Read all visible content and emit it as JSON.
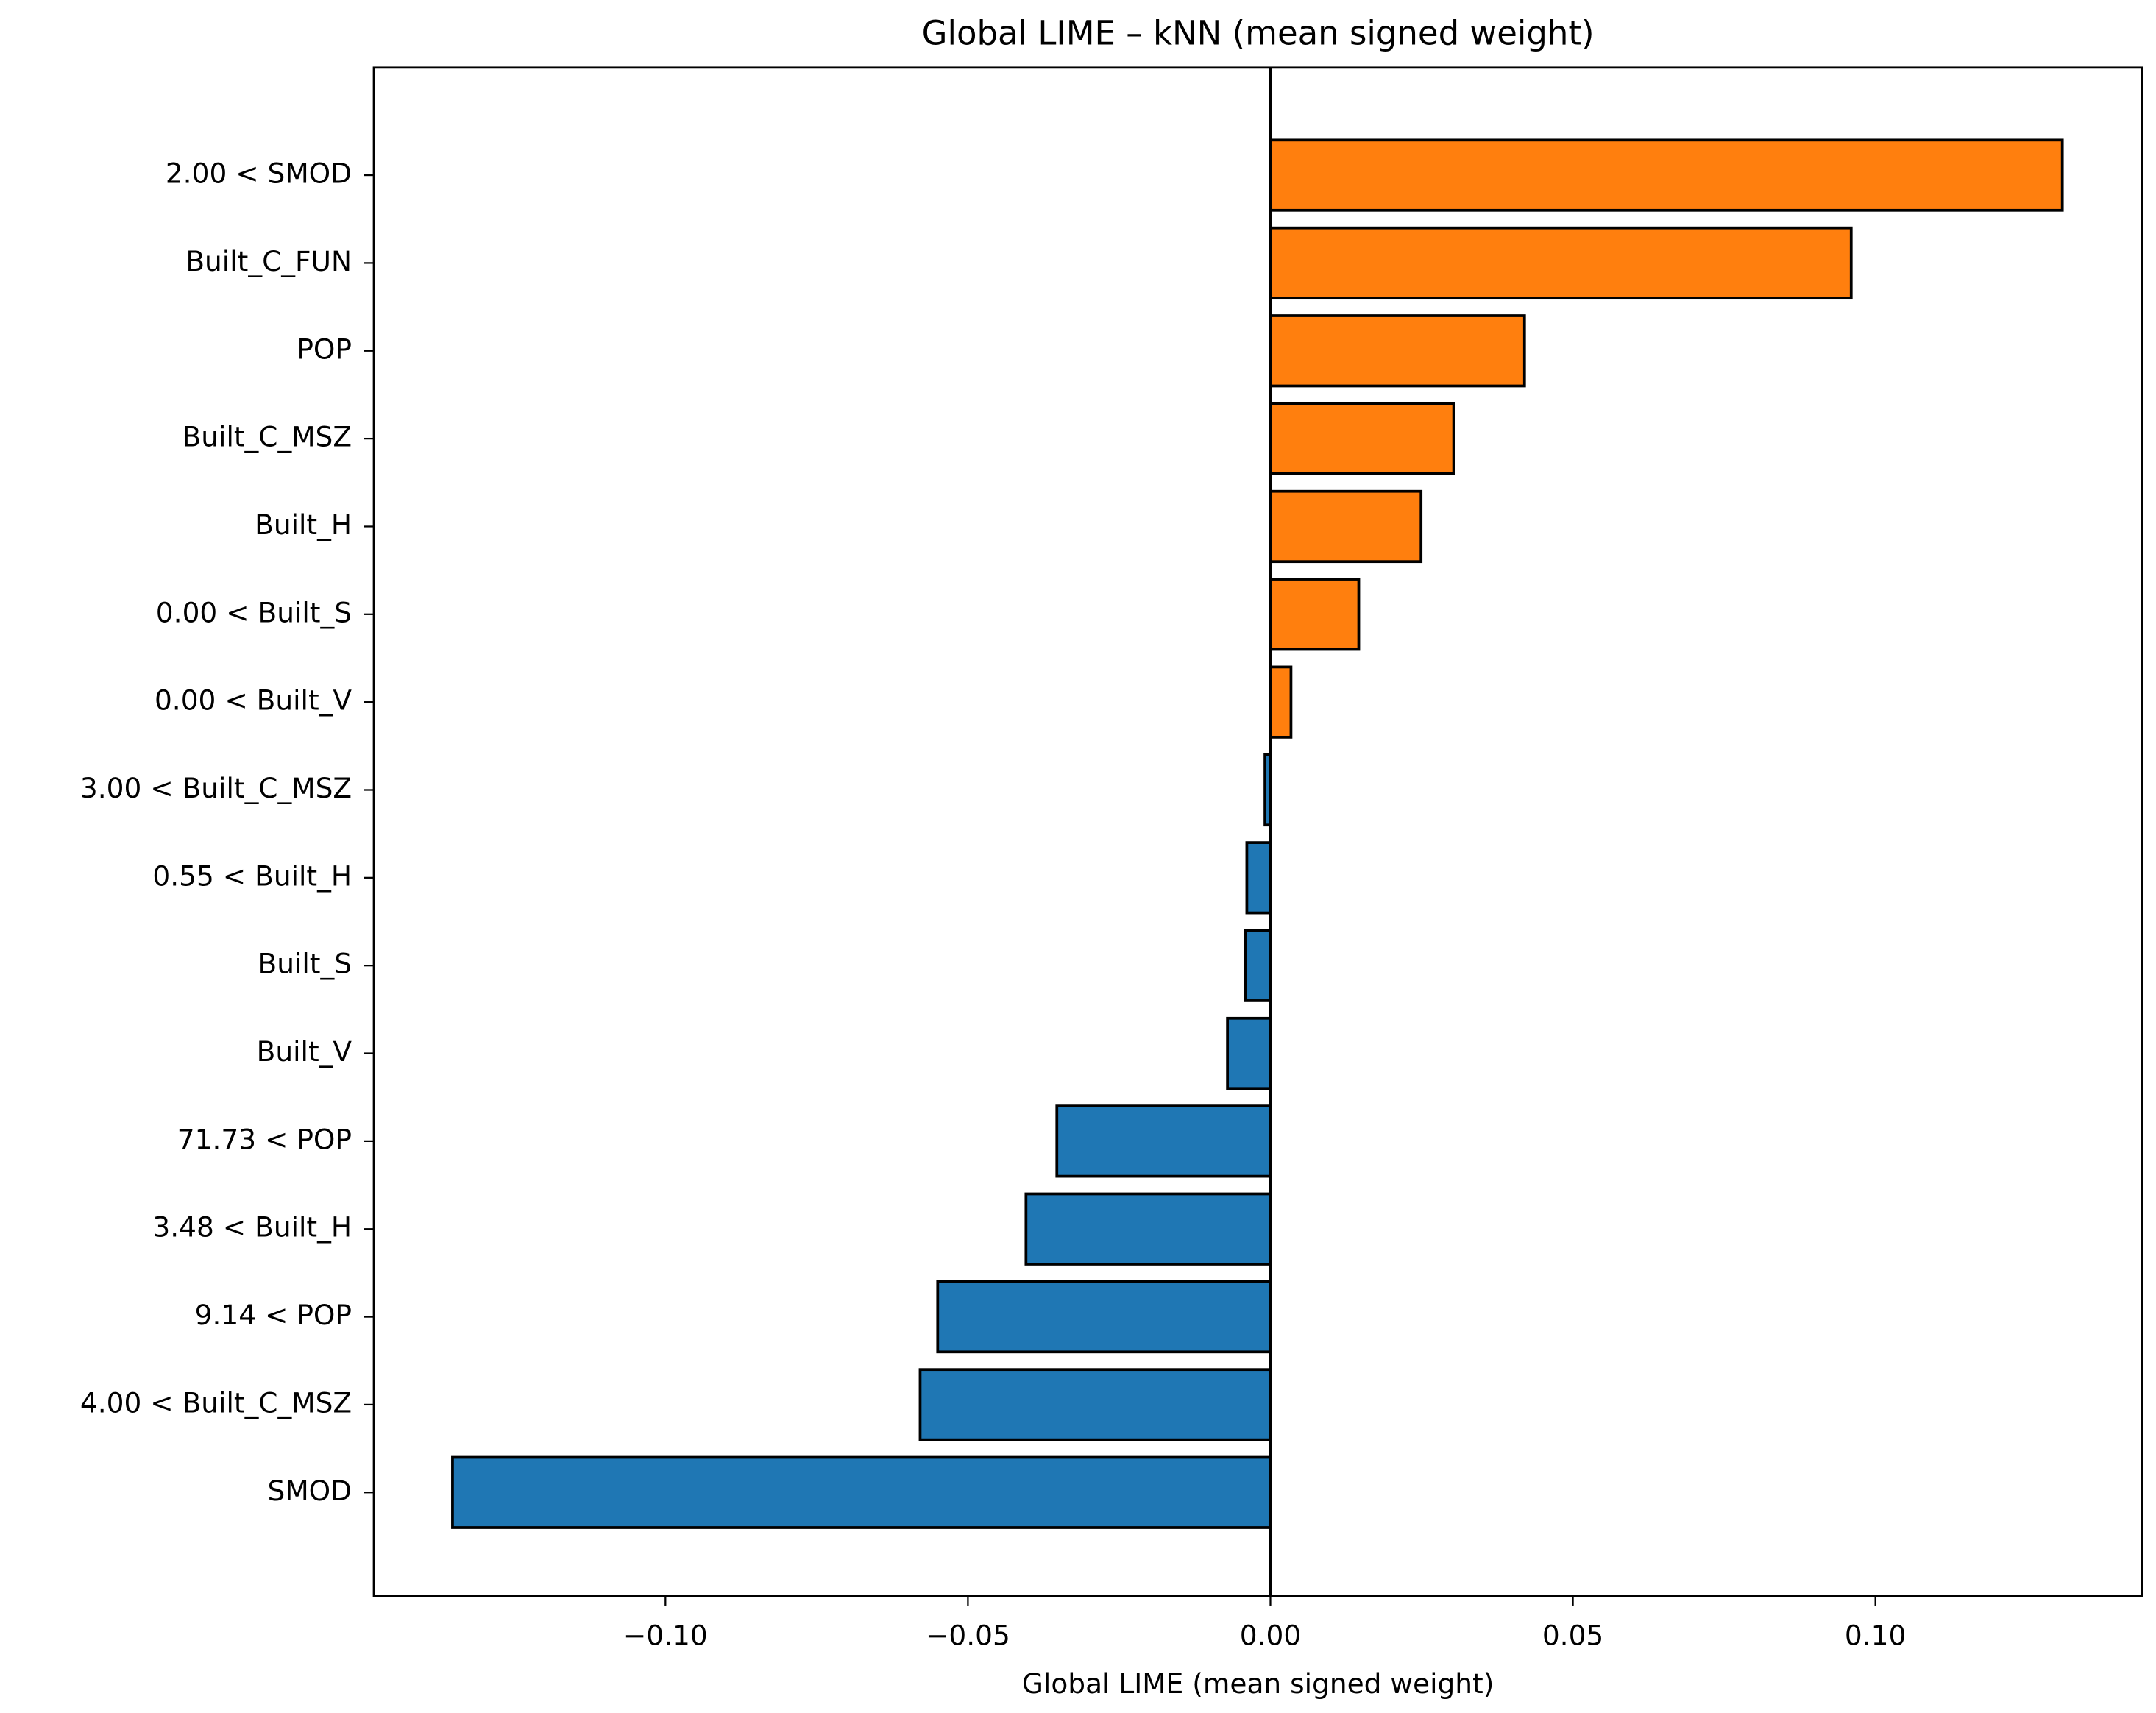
{
  "chart_data": {
    "type": "barh",
    "title": "Global LIME – kNN (mean signed weight)",
    "x_label": "Global LIME (mean signed weight)",
    "categories": [
      "2.00 < SMOD",
      "Built_C_FUN",
      "POP",
      "Built_C_MSZ",
      "Built_H",
      "0.00 < Built_S",
      "0.00 < Built_V",
      "3.00 < Built_C_MSZ",
      "0.55 < Built_H",
      "Built_S",
      "Built_V",
      "71.73 < POP",
      "3.48 < Built_H",
      "9.14 < POP",
      "4.00 < Built_C_MSZ",
      "SMOD"
    ],
    "values": [
      0.1309,
      0.096,
      0.042,
      0.0303,
      0.0249,
      0.0146,
      0.0034,
      -0.0009,
      -0.0039,
      -0.0041,
      -0.0071,
      -0.0353,
      -0.0404,
      -0.055,
      -0.0579,
      -0.1352
    ],
    "positive_color": "#ff7f0e",
    "negative_color": "#1f77b4",
    "xlim": [
      -0.1482,
      0.1441
    ],
    "xticks": [
      {
        "value": -0.1,
        "label": "−0.10"
      },
      {
        "value": -0.05,
        "label": "−0.05"
      },
      {
        "value": 0,
        "label": "0.00"
      },
      {
        "value": 0.05,
        "label": "0.05"
      },
      {
        "value": 0.1,
        "label": "0.10"
      }
    ]
  }
}
